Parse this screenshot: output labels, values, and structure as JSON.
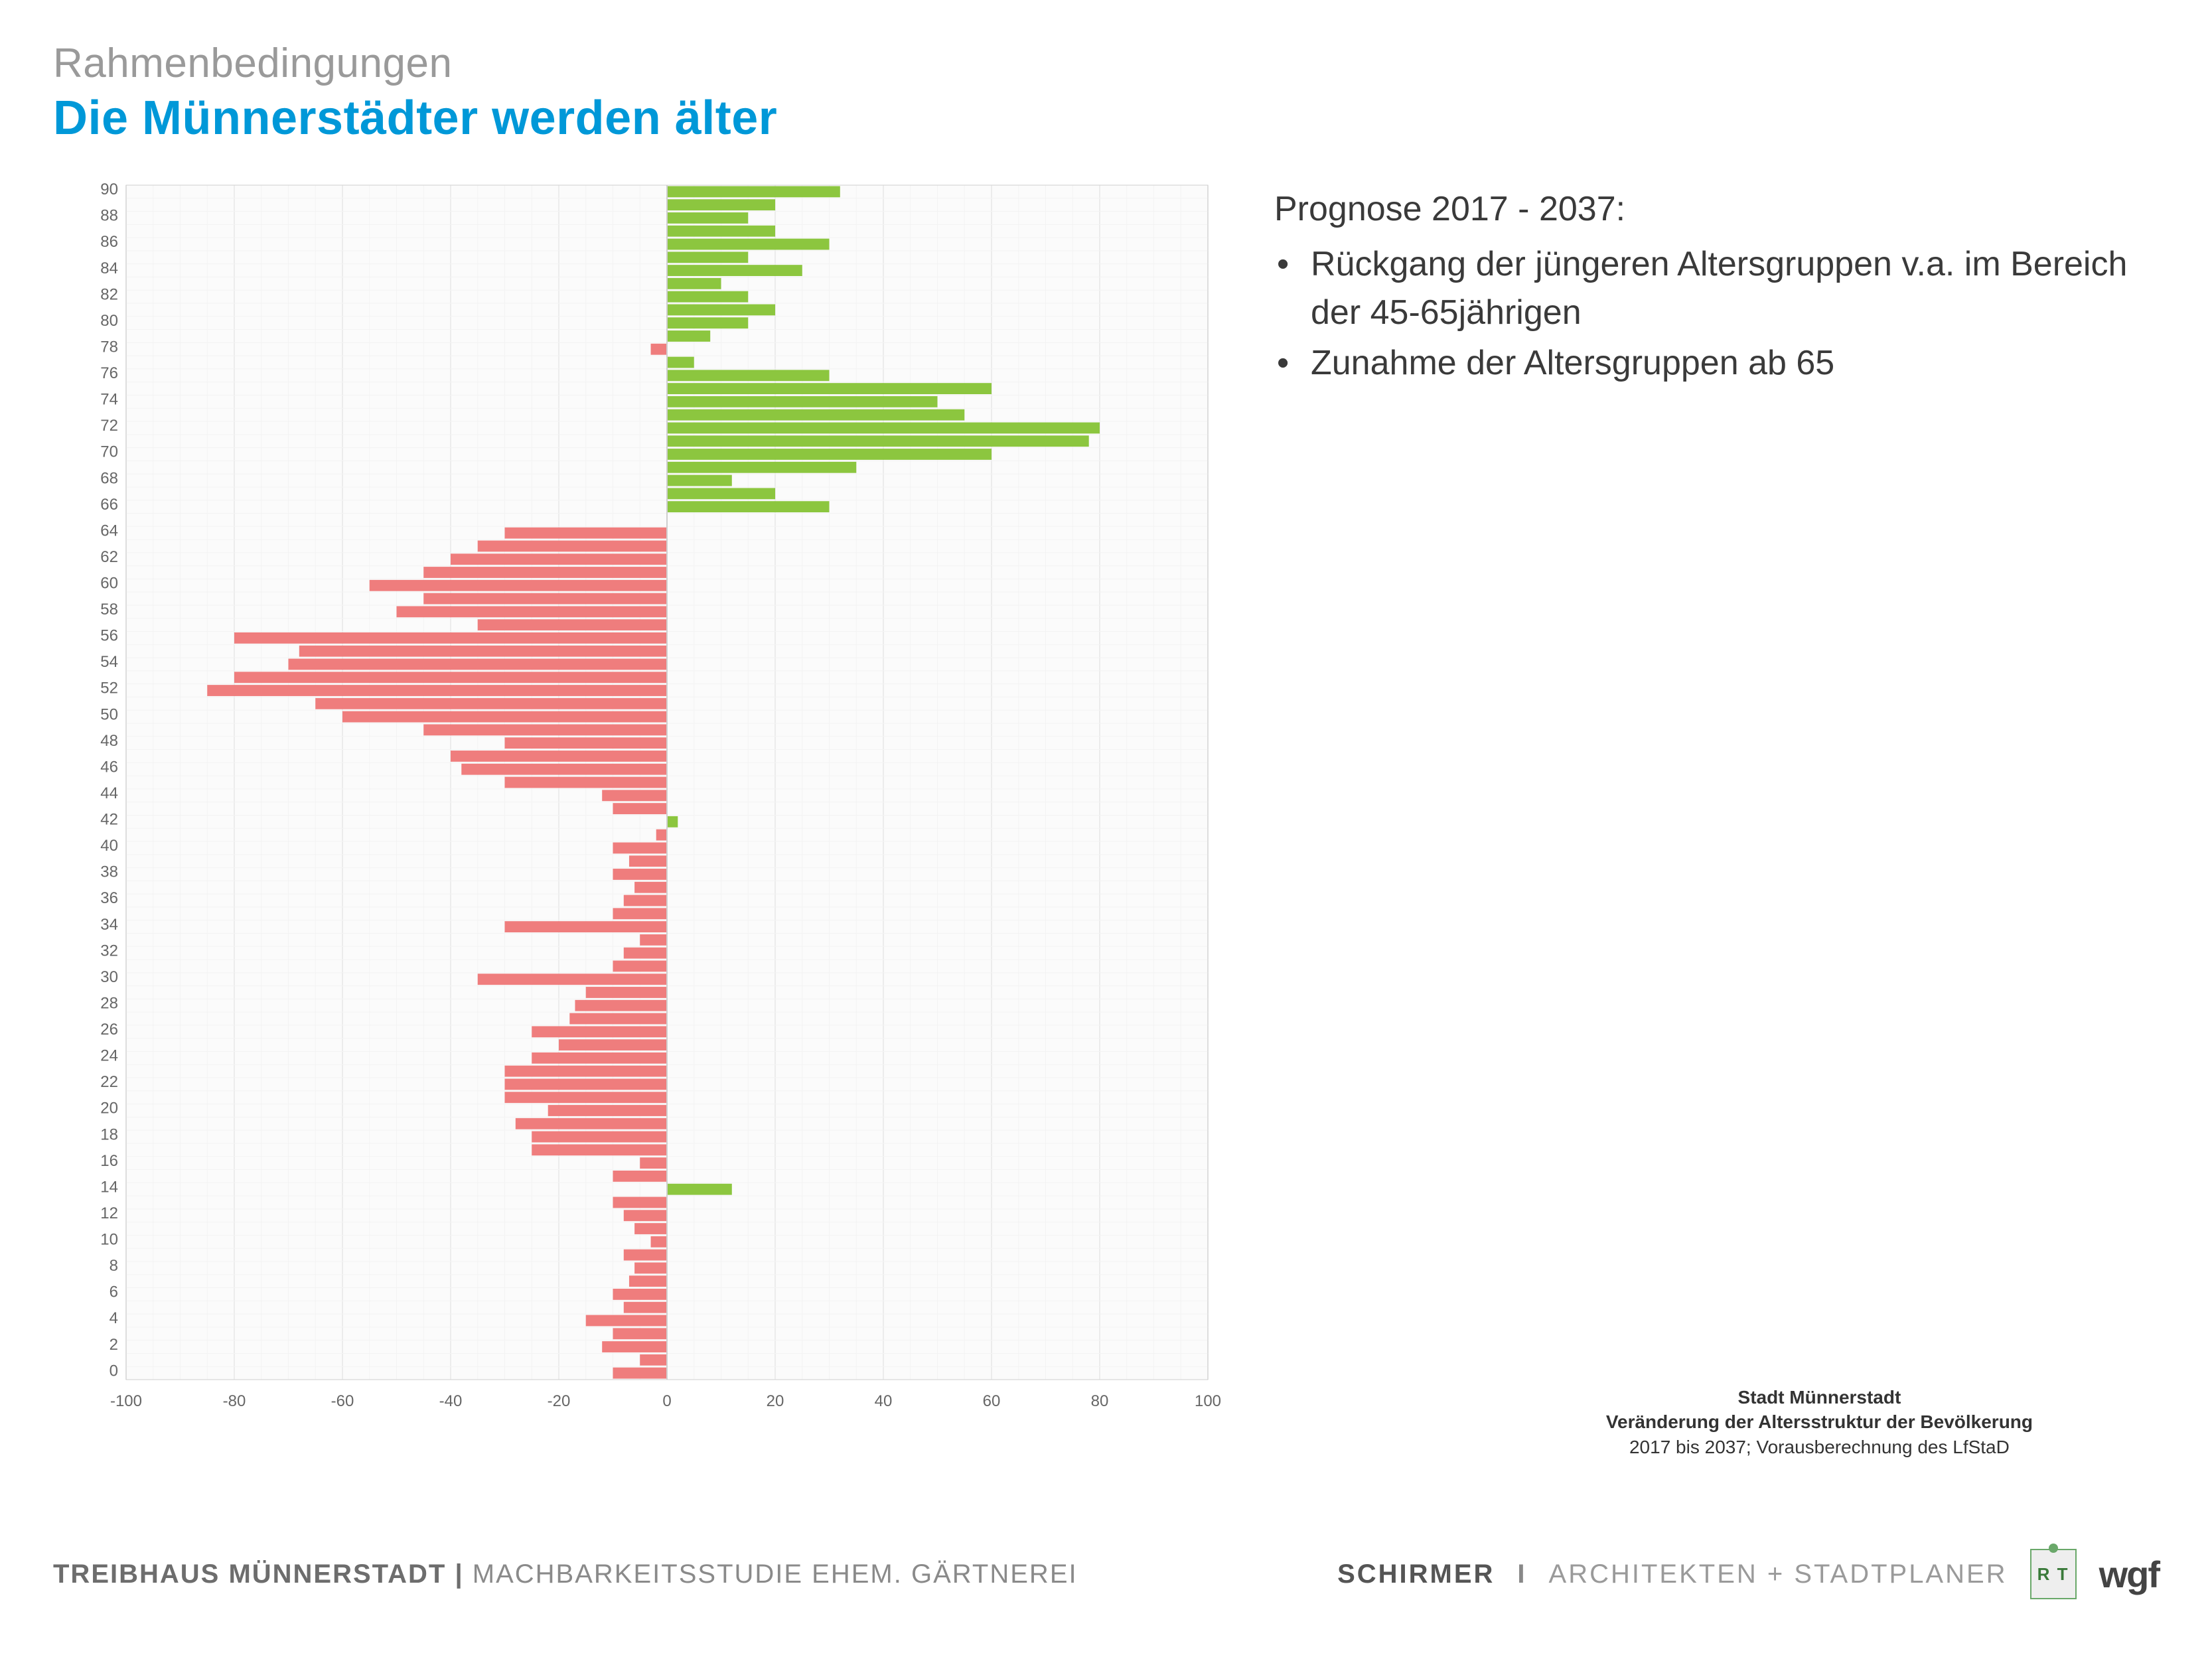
{
  "header": {
    "pretitle": "Rahmenbedingungen",
    "title": "Die Münnerstädter werden älter"
  },
  "sidebar": {
    "title": "Prognose 2017 - 2037:",
    "bullets": [
      "Rückgang der jüngeren Altersgruppen v.a. im Bereich der  45-65jährigen",
      "Zunahme der Altersgruppen ab 65"
    ]
  },
  "attribution": {
    "line1": "Stadt Münnerstadt",
    "line2": "Veränderung der Altersstruktur der Bevölkerung",
    "line3": "2017 bis 2037; Vorausberechnung des LfStaD"
  },
  "footer": {
    "left_bold": "TREIBHAUS MÜNNERSTADT | ",
    "left_rest": "MACHBARKEITSSTUDIE EHEM. GÄRTNEREI",
    "schirmer": "SCHIRMER",
    "divider": "I",
    "asp": "ARCHITEKTEN + STADTPLANER",
    "rt": "R T",
    "wgf": "wgf"
  },
  "chart": {
    "type": "bar-horizontal-diverging",
    "xlim": [
      -100,
      100
    ],
    "xticks": [
      -100,
      -80,
      -60,
      -40,
      -20,
      0,
      20,
      40,
      60,
      80,
      100
    ],
    "ytick_step": 2,
    "background_color": "#ffffff",
    "plot_bg": "#fbfbfb",
    "grid_color": "#ececec",
    "grid_minor_color": "#f3f3f3",
    "axis_color": "#cfcfcf",
    "tick_label_color": "#666666",
    "tick_fontsize": 24,
    "bar_gap_ratio": 0.15,
    "color_neg": "#ef7d7d",
    "color_pos": "#8cc63f",
    "ages": [
      0,
      1,
      2,
      3,
      4,
      5,
      6,
      7,
      8,
      9,
      10,
      11,
      12,
      13,
      14,
      15,
      16,
      17,
      18,
      19,
      20,
      21,
      22,
      23,
      24,
      25,
      26,
      27,
      28,
      29,
      30,
      31,
      32,
      33,
      34,
      35,
      36,
      37,
      38,
      39,
      40,
      41,
      42,
      43,
      44,
      45,
      46,
      47,
      48,
      49,
      50,
      51,
      52,
      53,
      54,
      55,
      56,
      57,
      58,
      59,
      60,
      61,
      62,
      63,
      64,
      65,
      66,
      67,
      68,
      69,
      70,
      71,
      72,
      73,
      74,
      75,
      76,
      77,
      78,
      79,
      80,
      81,
      82,
      83,
      84,
      85,
      86,
      87,
      88,
      89,
      90
    ],
    "values": [
      -10,
      -5,
      -12,
      -10,
      -15,
      -8,
      -10,
      -7,
      -6,
      -8,
      -3,
      -6,
      -8,
      -10,
      12,
      -10,
      -5,
      -25,
      -25,
      -28,
      -22,
      -30,
      -30,
      -30,
      -25,
      -20,
      -25,
      -18,
      -17,
      -15,
      -35,
      -10,
      -8,
      -5,
      -30,
      -10,
      -8,
      -6,
      -10,
      -7,
      -10,
      -2,
      2,
      -10,
      -12,
      -30,
      -38,
      -40,
      -30,
      -45,
      -60,
      -65,
      -85,
      -80,
      -70,
      -68,
      -80,
      -35,
      -50,
      -45,
      -55,
      -45,
      -40,
      -35,
      -30,
      0,
      30,
      20,
      12,
      35,
      60,
      78,
      80,
      55,
      50,
      60,
      30,
      5,
      -3,
      8,
      15,
      20,
      15,
      10,
      25,
      15,
      30,
      20,
      15,
      20,
      32
    ]
  }
}
